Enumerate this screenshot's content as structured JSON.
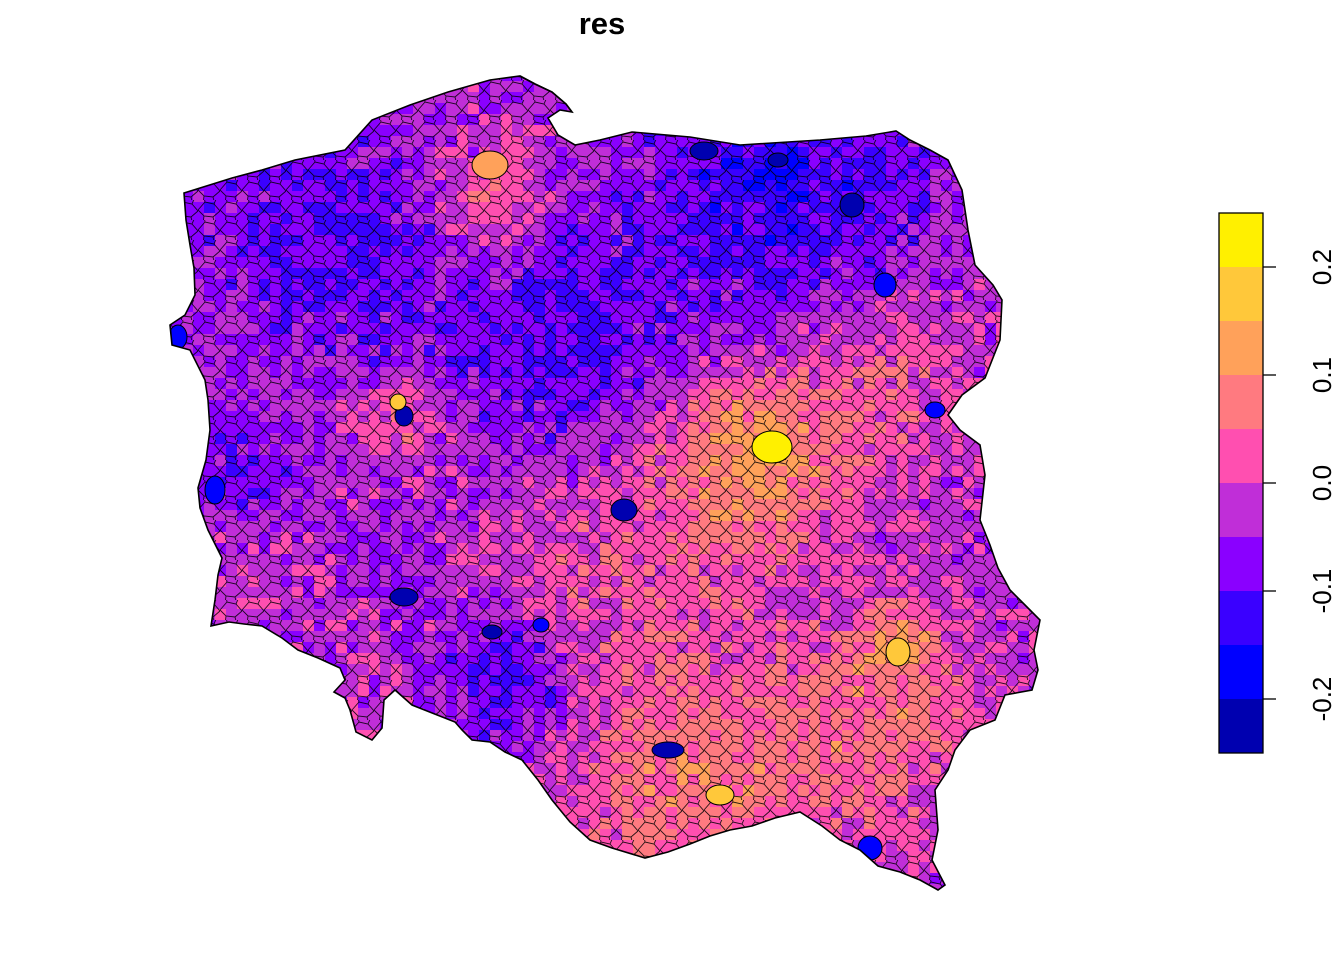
{
  "title": "res",
  "legend": {
    "ticks": [
      {
        "value": -0.2,
        "label": "-0.2"
      },
      {
        "value": -0.1,
        "label": "-0.1"
      },
      {
        "value": 0.0,
        "label": "0.0"
      },
      {
        "value": 0.1,
        "label": "0.1"
      },
      {
        "value": 0.2,
        "label": "0.2"
      }
    ],
    "range": [
      -0.25,
      0.25
    ],
    "bins": [
      {
        "from": -0.25,
        "to": -0.2,
        "color": "#0000B0"
      },
      {
        "from": -0.2,
        "to": -0.15,
        "color": "#0000FF"
      },
      {
        "from": -0.15,
        "to": -0.1,
        "color": "#3A00FF"
      },
      {
        "from": -0.1,
        "to": -0.05,
        "color": "#8A00FF"
      },
      {
        "from": -0.05,
        "to": 0.0,
        "color": "#C02ED8"
      },
      {
        "from": 0.0,
        "to": 0.05,
        "color": "#FF4FB0"
      },
      {
        "from": 0.05,
        "to": 0.1,
        "color": "#FF7A80"
      },
      {
        "from": 0.1,
        "to": 0.15,
        "color": "#FFA15A"
      },
      {
        "from": 0.15,
        "to": 0.2,
        "color": "#FFC83A"
      },
      {
        "from": 0.2,
        "to": 0.25,
        "color": "#FFF000"
      }
    ]
  },
  "map": {
    "region": "Poland",
    "units": "gminy",
    "fill_variable": "res"
  }
}
